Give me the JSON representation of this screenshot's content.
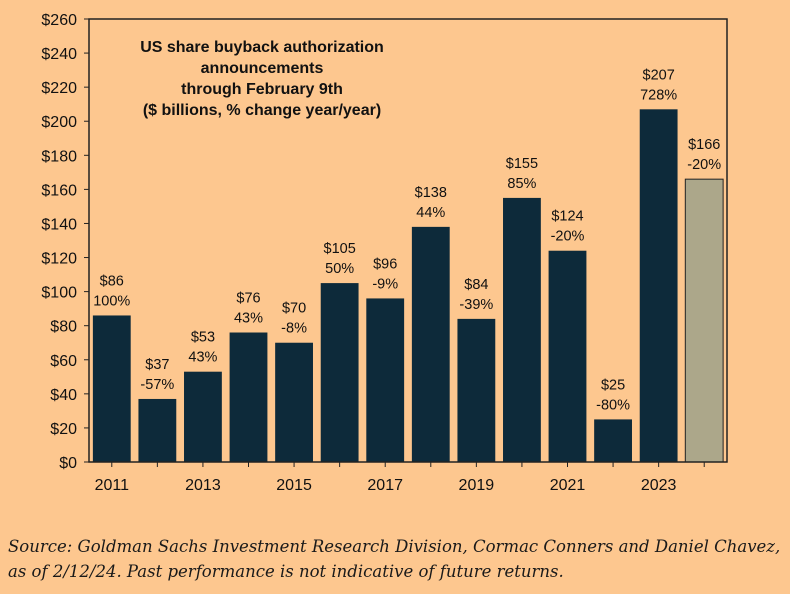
{
  "chart_data": {
    "type": "bar",
    "title_lines": [
      "US share buyback authorization",
      "announcements",
      "through February 9th",
      "($ billions, % change year/year)"
    ],
    "categories": [
      "2011",
      "2012",
      "2013",
      "2014",
      "2015",
      "2016",
      "2017",
      "2018",
      "2019",
      "2020",
      "2021",
      "2022",
      "2023",
      "2024"
    ],
    "x_tick_labels": [
      "2011",
      "",
      "2013",
      "",
      "2015",
      "",
      "2017",
      "",
      "2019",
      "",
      "2021",
      "",
      "2023",
      ""
    ],
    "values": [
      86,
      37,
      53,
      76,
      70,
      105,
      96,
      138,
      84,
      155,
      124,
      25,
      207,
      166
    ],
    "value_labels": [
      "$86",
      "$37",
      "$53",
      "$76",
      "$70",
      "$105",
      "$96",
      "$138",
      "$84",
      "$155",
      "$124",
      "$25",
      "$207",
      "$166"
    ],
    "pct_labels": [
      "100%",
      "-57%",
      "43%",
      "43%",
      "-8%",
      "50%",
      "-9%",
      "44%",
      "-39%",
      "85%",
      "-20%",
      "-80%",
      "728%",
      "-20%"
    ],
    "bar_colors": [
      "#0d2a3a",
      "#0d2a3a",
      "#0d2a3a",
      "#0d2a3a",
      "#0d2a3a",
      "#0d2a3a",
      "#0d2a3a",
      "#0d2a3a",
      "#0d2a3a",
      "#0d2a3a",
      "#0d2a3a",
      "#0d2a3a",
      "#0d2a3a",
      "#aca78a"
    ],
    "ylim": [
      0,
      260
    ],
    "yticks": [
      0,
      20,
      40,
      60,
      80,
      100,
      120,
      140,
      160,
      180,
      200,
      220,
      240,
      260
    ],
    "ytick_labels": [
      "$0",
      "$20",
      "$40",
      "$60",
      "$80",
      "$100",
      "$120",
      "$140",
      "$160",
      "$180",
      "$200",
      "$220",
      "$240",
      "$260"
    ],
    "grid": false,
    "xlabel": "",
    "ylabel": ""
  },
  "source_note": "Source: Goldman Sachs Investment Research Division, Cormac Conners and Daniel Chavez, as of 2/12/24. Past performance is not indicative of future returns."
}
